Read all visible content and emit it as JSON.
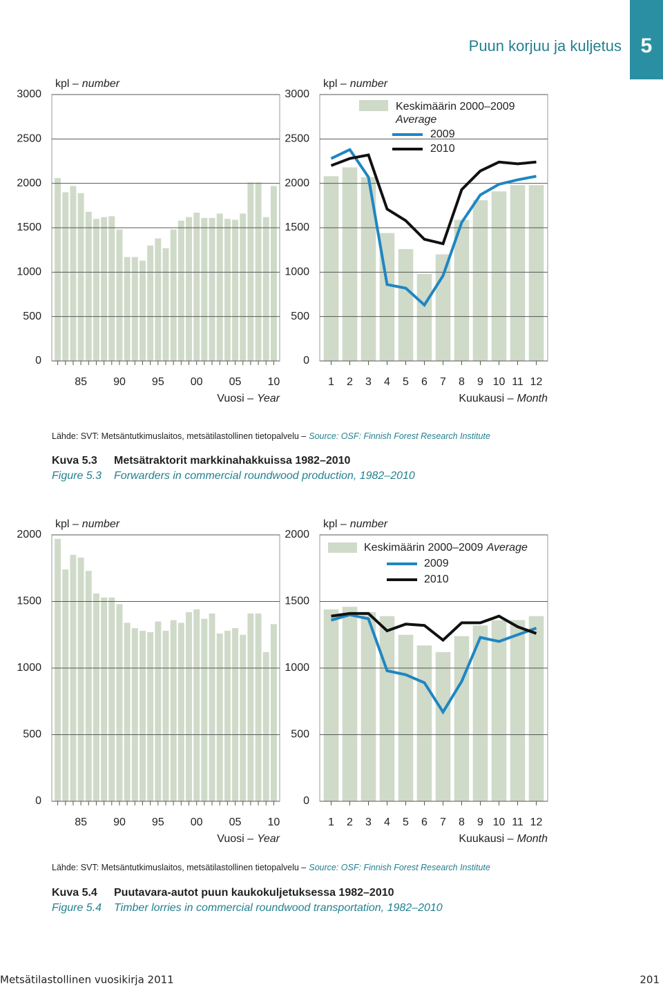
{
  "header": {
    "section": "Puun korjuu ja kuljetus",
    "number": "5"
  },
  "chart_data": [
    {
      "type": "bar",
      "y_label": "kpl –",
      "y_label_en": "number",
      "x_label": "Vuosi –",
      "x_label_en": "Year",
      "categories": [
        null,
        null,
        null,
        "85",
        null,
        null,
        null,
        null,
        "90",
        null,
        null,
        null,
        null,
        "95",
        null,
        null,
        null,
        null,
        "00",
        null,
        null,
        null,
        null,
        "05",
        null,
        null,
        null,
        null,
        "10"
      ],
      "values": [
        2060,
        1900,
        1970,
        1890,
        1680,
        1600,
        1620,
        1630,
        1480,
        1170,
        1170,
        1130,
        1300,
        1380,
        1270,
        1480,
        1580,
        1620,
        1670,
        1610,
        1610,
        1660,
        1600,
        1590,
        1660,
        2010,
        2010,
        1620,
        1970
      ],
      "color": "#cfdac9",
      "ylim": [
        0,
        3000
      ],
      "yticks": [
        0,
        500,
        1000,
        1500,
        2000,
        2500,
        3000
      ],
      "grid": true
    },
    {
      "type": "combo",
      "y_label": "kpl –",
      "y_label_en": "number",
      "x_label": "Kuukausi –",
      "x_label_en": "Month",
      "categories": [
        "1",
        "2",
        "3",
        "4",
        "5",
        "6",
        "7",
        "8",
        "9",
        "10",
        "11",
        "12"
      ],
      "series": [
        {
          "name": "Keskimäärin 2000–2009",
          "name_en": "Average",
          "kind": "bar",
          "color": "#cfdac9",
          "values": [
            2080,
            2180,
            2070,
            1440,
            1260,
            980,
            1200,
            1590,
            1810,
            1910,
            1980,
            1980
          ]
        },
        {
          "name": "2009",
          "kind": "line",
          "color": "#1f86c2",
          "values": [
            2280,
            2380,
            2070,
            860,
            820,
            630,
            960,
            1560,
            1870,
            1990,
            2040,
            2080
          ]
        },
        {
          "name": "2010",
          "kind": "line",
          "color": "#111111",
          "values": [
            2200,
            2280,
            2320,
            1710,
            1580,
            1370,
            1320,
            1930,
            2140,
            2240,
            2220,
            2240
          ]
        }
      ],
      "ylim": [
        0,
        3000
      ],
      "yticks": [
        0,
        500,
        1000,
        1500,
        2000,
        2500,
        3000
      ],
      "grid": true
    },
    {
      "type": "bar",
      "y_label": "kpl –",
      "y_label_en": "number",
      "x_label": "Vuosi –",
      "x_label_en": "Year",
      "categories": [
        null,
        null,
        null,
        "85",
        null,
        null,
        null,
        null,
        "90",
        null,
        null,
        null,
        null,
        "95",
        null,
        null,
        null,
        null,
        "00",
        null,
        null,
        null,
        null,
        "05",
        null,
        null,
        null,
        null,
        "10"
      ],
      "values": [
        1970,
        1740,
        1850,
        1830,
        1730,
        1560,
        1530,
        1530,
        1480,
        1340,
        1300,
        1280,
        1270,
        1350,
        1280,
        1360,
        1340,
        1420,
        1440,
        1370,
        1410,
        1260,
        1280,
        1300,
        1250,
        1410,
        1410,
        1120,
        1330
      ],
      "color": "#cfdac9",
      "ylim": [
        0,
        2000
      ],
      "yticks": [
        0,
        500,
        1000,
        1500,
        2000
      ],
      "grid": true
    },
    {
      "type": "combo",
      "y_label": "kpl –",
      "y_label_en": "number",
      "x_label": "Kuukausi –",
      "x_label_en": "Month",
      "categories": [
        "1",
        "2",
        "3",
        "4",
        "5",
        "6",
        "7",
        "8",
        "9",
        "10",
        "11",
        "12"
      ],
      "series": [
        {
          "name": "Keskimäärin 2000–2009",
          "name_en": "Average",
          "kind": "bar",
          "color": "#cfdac9",
          "values": [
            1440,
            1460,
            1420,
            1390,
            1250,
            1170,
            1120,
            1240,
            1320,
            1360,
            1360,
            1390
          ]
        },
        {
          "name": "2009",
          "kind": "line",
          "color": "#1f86c2",
          "values": [
            1360,
            1400,
            1370,
            980,
            950,
            890,
            670,
            900,
            1230,
            1200,
            1250,
            1300
          ]
        },
        {
          "name": "2010",
          "kind": "line",
          "color": "#111111",
          "values": [
            1390,
            1410,
            1410,
            1280,
            1330,
            1320,
            1210,
            1340,
            1340,
            1390,
            1310,
            1260
          ]
        }
      ],
      "ylim": [
        0,
        2000
      ],
      "yticks": [
        0,
        500,
        1000,
        1500,
        2000
      ],
      "grid": true
    }
  ],
  "figures": [
    {
      "source": "Lähde: SVT: Metsäntutkimuslaitos, metsätilastollinen tietopalvelu –",
      "source_en": "Source: OSF: Finnish Forest Research Institute",
      "label": "Kuva 5.3",
      "title": "Metsätraktorit markkinahakkuissa 1982–2010",
      "label_en": "Figure 5.3",
      "title_en": "Forwarders in commercial roundwood production, 1982–2010"
    },
    {
      "source": "Lähde: SVT: Metsäntutkimuslaitos, metsätilastollinen tietopalvelu –",
      "source_en": "Source: OSF: Finnish Forest Research Institute",
      "label": "Kuva 5.4",
      "title": "Puutavara-autot puun kaukokuljetuksessa 1982–2010",
      "label_en": "Figure 5.4",
      "title_en": "Timber lorries in commercial roundwood transportation, 1982–2010"
    }
  ],
  "footer": {
    "publication": "Metsätilastollinen vuosikirja 2011",
    "page": "201"
  }
}
